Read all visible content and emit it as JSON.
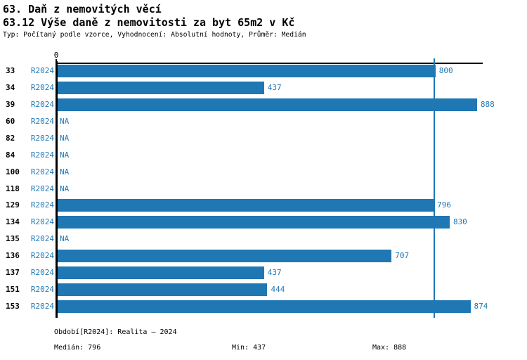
{
  "header": {
    "title": "63. Daň z nemovitých věcí",
    "subtitle": "63.12 Výše daně z nemovitosti za byt 65m2 v Kč",
    "meta": "Typ: Počítaný podle vzorce, Vyhodnocení: Absolutní hodnoty, Průměr: Medián"
  },
  "chart_data": {
    "type": "bar",
    "orientation": "horizontal",
    "title": "63.12 Výše daně z nemovitosti za byt 65m2 v Kč",
    "categories": [
      "33",
      "34",
      "39",
      "60",
      "82",
      "84",
      "100",
      "118",
      "129",
      "134",
      "135",
      "136",
      "137",
      "151",
      "153"
    ],
    "series": [
      {
        "name": "R2024",
        "values": [
          800,
          437,
          888,
          null,
          null,
          null,
          null,
          null,
          796,
          830,
          null,
          707,
          437,
          444,
          874
        ]
      }
    ],
    "na_label": "NA",
    "xlim": [
      0,
      900
    ],
    "x_zero_tick_label": "0",
    "median_reference_line": 796,
    "stats": {
      "median": 796,
      "min": 437,
      "max": 888
    },
    "grid": false,
    "legend": false,
    "colors": {
      "bar": "#1f77b4",
      "value_label": "#1f77b4",
      "series_label": "#1f77b4",
      "median_line": "#1f77b4",
      "axis": "#000000",
      "category_label": "#000000"
    }
  },
  "footer": {
    "period": "Období[R2024]: Realita – 2024",
    "median": "Medián: 796",
    "min": "Min: 437",
    "max": "Max: 888"
  }
}
